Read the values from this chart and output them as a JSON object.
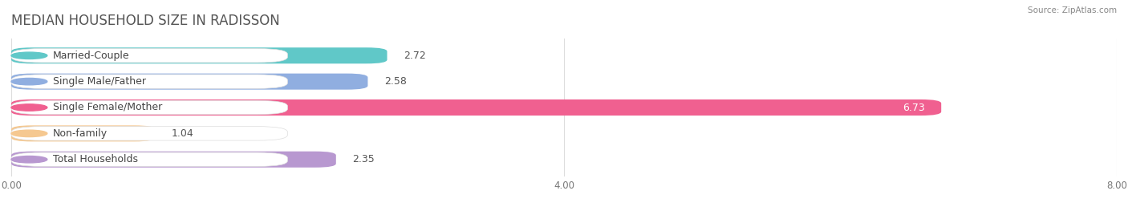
{
  "title": "MEDIAN HOUSEHOLD SIZE IN RADISSON",
  "source": "Source: ZipAtlas.com",
  "categories": [
    "Married-Couple",
    "Single Male/Father",
    "Single Female/Mother",
    "Non-family",
    "Total Households"
  ],
  "values": [
    2.72,
    2.58,
    6.73,
    1.04,
    2.35
  ],
  "bar_colors": [
    "#60c8c8",
    "#90aee0",
    "#f06090",
    "#f5c890",
    "#b898d0"
  ],
  "label_bg_colors": [
    "#e8f8f8",
    "#e8eef8",
    "#fce8f0",
    "#fdf5e8",
    "#f0eaf8"
  ],
  "xlim": [
    0,
    8.0
  ],
  "xticks": [
    0.0,
    4.0,
    8.0
  ],
  "xtick_labels": [
    "0.00",
    "4.00",
    "8.00"
  ],
  "title_fontsize": 12,
  "label_fontsize": 9,
  "value_fontsize": 9,
  "bar_height": 0.62,
  "fig_width": 14.06,
  "fig_height": 2.68,
  "background_color": "#ffffff",
  "bar_gap": 0.18
}
